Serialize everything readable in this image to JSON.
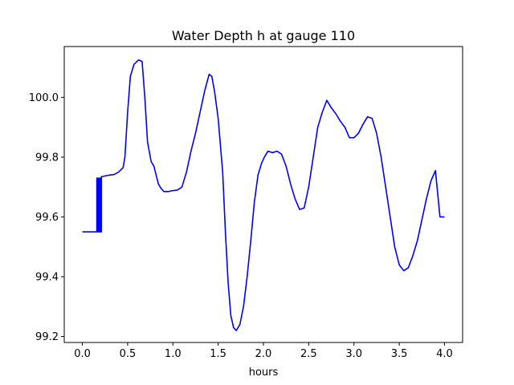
{
  "chart_data": {
    "type": "line",
    "title": "Water Depth h at gauge 110",
    "xlabel": "hours",
    "ylabel": "",
    "xlim": [
      -0.2,
      4.2
    ],
    "ylim": [
      99.18,
      100.17
    ],
    "xticks": [
      0.0,
      0.5,
      1.0,
      1.5,
      2.0,
      2.5,
      3.0,
      3.5,
      4.0
    ],
    "xtick_labels": [
      "0.0",
      "0.5",
      "1.0",
      "1.5",
      "2.0",
      "2.5",
      "3.0",
      "3.5",
      "4.0"
    ],
    "yticks": [
      99.2,
      99.4,
      99.6,
      99.8,
      100.0
    ],
    "ytick_labels": [
      "99.2",
      "99.4",
      "99.6",
      "99.8",
      "100.0"
    ],
    "grid": false,
    "legend": "none",
    "series": [
      {
        "color": "#0000ff",
        "x": [
          0.0,
          0.16,
          0.16,
          0.17,
          0.17,
          0.18,
          0.18,
          0.19,
          0.19,
          0.2,
          0.2,
          0.21,
          0.21,
          0.22,
          0.22,
          0.25,
          0.3,
          0.35,
          0.4,
          0.45,
          0.47,
          0.5,
          0.53,
          0.57,
          0.62,
          0.66,
          0.69,
          0.72,
          0.76,
          0.79,
          0.84,
          0.87,
          0.9,
          0.95,
          1.0,
          1.05,
          1.1,
          1.15,
          1.2,
          1.25,
          1.3,
          1.35,
          1.4,
          1.43,
          1.46,
          1.5,
          1.55,
          1.58,
          1.61,
          1.64,
          1.67,
          1.7,
          1.74,
          1.78,
          1.82,
          1.86,
          1.9,
          1.94,
          1.98,
          2.01,
          2.05,
          2.1,
          2.15,
          2.2,
          2.25,
          2.3,
          2.35,
          2.4,
          2.45,
          2.5,
          2.55,
          2.6,
          2.65,
          2.7,
          2.75,
          2.8,
          2.85,
          2.9,
          2.95,
          3.0,
          3.05,
          3.1,
          3.15,
          3.2,
          3.25,
          3.3,
          3.35,
          3.4,
          3.45,
          3.5,
          3.55,
          3.6,
          3.65,
          3.7,
          3.75,
          3.8,
          3.85,
          3.9,
          3.95,
          4.0
        ],
        "y": [
          99.55,
          99.55,
          99.73,
          99.55,
          99.73,
          99.55,
          99.73,
          99.55,
          99.73,
          99.55,
          99.73,
          99.55,
          99.735,
          99.735,
          99.735,
          99.737,
          99.74,
          99.742,
          99.75,
          99.765,
          99.8,
          99.95,
          100.07,
          100.11,
          100.125,
          100.12,
          100.0,
          99.85,
          99.785,
          99.77,
          99.71,
          99.695,
          99.685,
          99.685,
          99.688,
          99.69,
          99.7,
          99.75,
          99.82,
          99.88,
          99.95,
          100.02,
          100.077,
          100.07,
          100.02,
          99.93,
          99.75,
          99.55,
          99.38,
          99.27,
          99.23,
          99.22,
          99.24,
          99.3,
          99.4,
          99.52,
          99.65,
          99.74,
          99.78,
          99.8,
          99.82,
          99.815,
          99.82,
          99.81,
          99.77,
          99.71,
          99.66,
          99.625,
          99.63,
          99.7,
          99.8,
          99.9,
          99.95,
          99.99,
          99.965,
          99.945,
          99.92,
          99.9,
          99.865,
          99.865,
          99.88,
          99.91,
          99.935,
          99.93,
          99.88,
          99.8,
          99.7,
          99.6,
          99.5,
          99.44,
          99.42,
          99.43,
          99.47,
          99.52,
          99.59,
          99.66,
          99.72,
          99.755,
          99.6,
          99.6
        ]
      }
    ]
  }
}
